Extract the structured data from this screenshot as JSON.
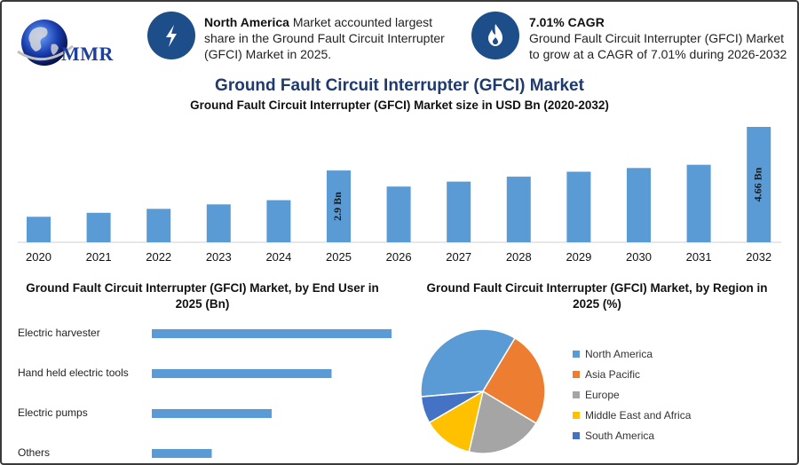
{
  "logo": {
    "text": "MMR"
  },
  "info_left": {
    "icon": "lightning-icon",
    "bold": "North America",
    "text": " Market accounted largest share in the Ground Fault Circuit Interrupter (GFCI) Market in 2025."
  },
  "info_right": {
    "icon": "flame-icon",
    "bold": "7.01% CAGR",
    "text": "Ground Fault Circuit Interrupter (GFCI) Market to grow at a CAGR of 7.01% during 2026-2032"
  },
  "title": "Ground Fault Circuit Interrupter (GFCI) Market",
  "chart_data": [
    {
      "type": "bar",
      "title": "Ground Fault Circuit Interrupter (GFCI) Market size in USD Bn (2020-2032)",
      "categories": [
        "2020",
        "2021",
        "2022",
        "2023",
        "2024",
        "2025",
        "2026",
        "2027",
        "2028",
        "2029",
        "2030",
        "2031",
        "2032"
      ],
      "values": [
        1.03,
        1.19,
        1.35,
        1.53,
        1.7,
        2.9,
        2.25,
        2.45,
        2.65,
        2.85,
        3.0,
        3.13,
        4.66
      ],
      "data_labels": [
        {
          "category": "2025",
          "text": "2.9 Bn"
        },
        {
          "category": "2032",
          "text": "4.66 Bn"
        }
      ],
      "color": "#5b9bd5",
      "grid": false
    },
    {
      "type": "bar",
      "orientation": "horizontal",
      "title": "Ground Fault Circuit Interrupter (GFCI) Market, by End User in 2025 (Bn)",
      "categories": [
        "Electric harvester",
        "Hand held electric tools",
        "Electric pumps",
        "Others"
      ],
      "values": [
        1.0,
        0.75,
        0.5,
        0.25
      ],
      "color": "#5b9bd5",
      "grid": false
    },
    {
      "type": "pie",
      "title": "Ground Fault Circuit Interrupter (GFCI) Market, by Region in 2025 (%)",
      "labels": [
        "North America",
        "Asia Pacific",
        "Europe",
        "Middle East and Africa",
        "South America"
      ],
      "values": [
        35,
        25,
        20,
        13,
        7
      ],
      "colors": [
        "#5b9bd5",
        "#ed7d31",
        "#a5a5a5",
        "#ffc000",
        "#4472c4"
      ],
      "legend": "right"
    }
  ]
}
